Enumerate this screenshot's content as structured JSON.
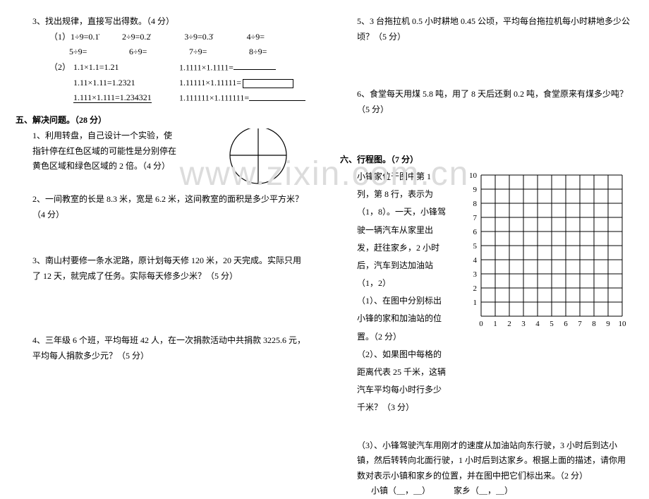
{
  "left": {
    "q3": {
      "title": "3、找出规律，直接写出得数。（4 分）",
      "part1_prefix": "（1）",
      "p1": [
        {
          "a": "1÷9=0.1̇",
          "b": "2÷9=0.2̇",
          "c": "3÷9=0.3̇",
          "d": "4÷9="
        },
        {
          "a": "5÷9=",
          "b": "6÷9=",
          "c": "7÷9=",
          "d": "8÷9="
        }
      ],
      "part2_prefix": "（2）",
      "p2": [
        {
          "l": "1.1×1.1=1.21",
          "r": "1.1111×1.1111="
        },
        {
          "l": "1.11×1.11=1.2321",
          "r": "1.11111×1.11111="
        },
        {
          "l": "1.111×1.111=1.234321",
          "r": "1.111111×1.111111="
        }
      ]
    },
    "five_title": "五、解决问题。（28 分）",
    "q5_1": "1、利用转盘，自己设计一个实验，使指针停在红色区域的可能性是分别停在黄色区域和绿色区域的 2 倍。（4 分）",
    "q5_2": "2、一间教室的长是 8.3 米，宽是 6.2 米，这间教室的面积是多少平方米？（4 分）",
    "q5_3": "3、南山村要修一条水泥路，原计划每天修 120 米，20 天完成。实际只用了 12 天，就完成了任务。实际每天修多少米？（5 分）",
    "q5_4": "4、三年级 6 个班，平均每班 42 人，在一次捐款活动中共捐款 3225.6 元，平均每人捐款多少元？（5 分）"
  },
  "right": {
    "q5_5": "5、3 台拖拉机 0.5 小时耕地 0.45 公顷，平均每台拖拉机每小时耕地多少公顷？（5 分）",
    "q5_6": "6、食堂每天用煤 5.8 吨，用了 8 天后还剩 0.2 吨，食堂原来有煤多少吨？（5 分）",
    "six_title": "六、行程图。（7 分）",
    "six_intro": "小锋家位于图中第 1 列，第 8 行，表示为（1，8）。一天，小锋驾驶一辆汽车从家里出发，赶往家乡，2 小时后，汽车到达加油站（1，2）",
    "six_q1": "（1）、在图中分别标出小锋的家和加油站的位置。（2 分）",
    "six_q2": "（2）、如果图中每格的距离代表 25 千米，这辆汽车平均每小时行多少千米？（3 分）",
    "grid": {
      "ylabels": [
        "10",
        "9",
        "8",
        "7",
        "6",
        "5",
        "4",
        "3",
        "2",
        "1"
      ],
      "xlabels": [
        "0",
        "1",
        "2",
        "3",
        "4",
        "5",
        "6",
        "7",
        "8",
        "9",
        "10"
      ]
    },
    "north": "北",
    "six_q3": "（3）、小锋驾驶汽车用刚才的速度从加油站向东行驶，3 小时后到达小镇，然后转转向北面行驶，1 小时后到达家乡。根据上面的描述，请你用数对表示小镇和家乡的位置，并在图中把它们标出来。（2 分）",
    "six_q3_fill_a": "小镇（＿，＿）",
    "six_q3_fill_b": "家乡（＿，＿）"
  },
  "watermark": "www.zixin.com.cn",
  "colors": {
    "text": "#000000",
    "bg": "#ffffff",
    "wm": "#dcdcdc"
  }
}
